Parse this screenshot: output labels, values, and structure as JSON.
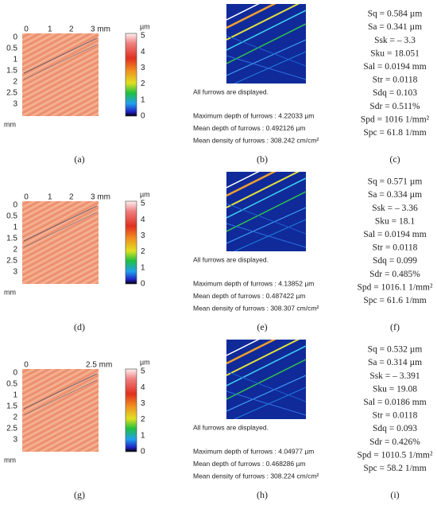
{
  "rows": [
    {
      "map": {
        "xticks": [
          "0",
          "1",
          "2",
          "3 mm"
        ],
        "yticks": [
          "0",
          "0.5",
          "1",
          "1.5",
          "2",
          "2.5",
          "3"
        ],
        "y_unit": "mm",
        "colorbar_unit": "µm",
        "colorbar_ticks": [
          "5",
          "4",
          "3",
          "2",
          "1",
          "0"
        ],
        "label": "(a)"
      },
      "furrows": {
        "status": "All furrows are displayed.",
        "lines": [
          "Maximum depth of furrows : 4.22033 µm",
          "Mean depth of furrows : 0.492126 µm",
          "Mean density of furrows : 308.242 cm/cm²"
        ],
        "label": "(b)"
      },
      "params": {
        "lines": [
          "Sq = 0.584 µm",
          "Sa = 0.341 µm",
          "Ssk = – 3.3",
          "Sku = 18.051",
          "Sal = 0.0194 mm",
          "Str = 0.0118",
          "Sdq = 0.103",
          "Sdr = 0.511%",
          "Spd = 1016 1/mm²",
          "Spc = 61.8 1/mm"
        ],
        "label": "(c)"
      }
    },
    {
      "map": {
        "xticks": [
          "0",
          "1",
          "2",
          "3 mm"
        ],
        "yticks": [
          "0",
          "0.5",
          "1",
          "1.5",
          "2",
          "2.5",
          "3"
        ],
        "y_unit": "mm",
        "colorbar_unit": "µm",
        "colorbar_ticks": [
          "5",
          "4",
          "3",
          "2",
          "1",
          "0"
        ],
        "label": "(d)"
      },
      "furrows": {
        "status": "All furrows are displayed.",
        "lines": [
          "Maximum depth of furrows : 4.13852 µm",
          "Mean depth of furrows : 0.487422 µm",
          "Mean density of furrows : 308.307 cm/cm²"
        ],
        "label": "(e)"
      },
      "params": {
        "lines": [
          "Sq = 0.571 µm",
          "Sa = 0.334 µm",
          "Ssk = – 3.36",
          "Sku = 18.1",
          "Sal = 0.0194 mm",
          "Str = 0.0118",
          "Sdq = 0.099",
          "Sdr = 0.485%",
          "Spd = 1016.1 1/mm²",
          "Spc = 61.6 1/mm"
        ],
        "label": "(f)"
      }
    },
    {
      "map": {
        "xticks": [
          "0",
          "2.5 mm"
        ],
        "yticks": [
          "0",
          "0.5",
          "1",
          "1.5",
          "2",
          "2.5",
          "3"
        ],
        "y_unit": "mm",
        "colorbar_unit": "µm",
        "colorbar_ticks": [
          "5",
          "4",
          "3",
          "2",
          "1",
          "0"
        ],
        "label": "(g)"
      },
      "furrows": {
        "status": "All furrows are displayed.",
        "lines": [
          "Maximum depth of furrows : 4.04977 µm",
          "Mean depth of furrows : 0.468286 µm",
          "Mean density of furrows : 308.224 cm/cm²"
        ],
        "label": "(h)"
      },
      "params": {
        "lines": [
          "Sq = 0.532 µm",
          "Sa = 0.314 µm",
          "Ssk = – 3.391",
          "Sku = 19.08",
          "Sal = 0.0186 mm",
          "Str = 0.0118",
          "Sdq = 0.093",
          "Sdr = 0.426%",
          "Spd = 1010.5 1/mm²",
          "Spc = 58.2 1/mm"
        ],
        "label": "(i)"
      }
    }
  ]
}
